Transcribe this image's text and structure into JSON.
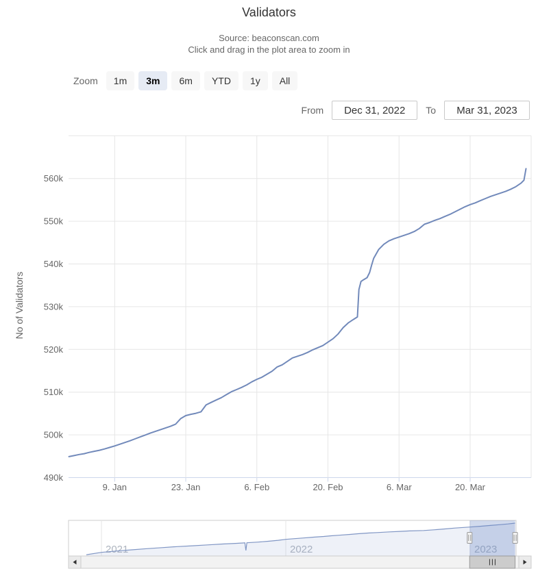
{
  "header": {
    "title": "Validators",
    "subtitle1": "Source: beaconscan.com",
    "subtitle2": "Click and drag in the plot area to zoom in"
  },
  "range_selector": {
    "zoom_label": "Zoom",
    "buttons": [
      {
        "label": "1m",
        "selected": false
      },
      {
        "label": "3m",
        "selected": true
      },
      {
        "label": "6m",
        "selected": false
      },
      {
        "label": "YTD",
        "selected": false
      },
      {
        "label": "1y",
        "selected": false
      },
      {
        "label": "All",
        "selected": false
      }
    ],
    "from_label": "From",
    "from_value": "Dec 31, 2022",
    "to_label": "To",
    "to_value": "Mar 31, 2023"
  },
  "chart_data": {
    "type": "line",
    "title": "Validators",
    "ylabel": "No of Validators",
    "xlabel": "",
    "x_unit": "days since Dec 31, 2022",
    "x_range": [
      "Dec 31, 2022",
      "Mar 31, 2023"
    ],
    "ylim": [
      487,
      571
    ],
    "grid": true,
    "legend": "none",
    "x_ticks": [
      {
        "day": 9,
        "label": "9. Jan"
      },
      {
        "day": 23,
        "label": "23. Jan"
      },
      {
        "day": 37,
        "label": "6. Feb"
      },
      {
        "day": 51,
        "label": "20. Feb"
      },
      {
        "day": 65,
        "label": "6. Mar"
      },
      {
        "day": 79,
        "label": "20. Mar"
      }
    ],
    "y_ticks": [
      {
        "v": 490,
        "label": "490k"
      },
      {
        "v": 500,
        "label": "500k"
      },
      {
        "v": 510,
        "label": "510k"
      },
      {
        "v": 520,
        "label": "520k"
      },
      {
        "v": 530,
        "label": "530k"
      },
      {
        "v": 540,
        "label": "540k"
      },
      {
        "v": 550,
        "label": "550k"
      },
      {
        "v": 560,
        "label": "560k"
      },
      {
        "v": 570,
        "label": ""
      }
    ],
    "series": [
      {
        "name": "No of Validators (thousands)",
        "points": [
          [
            0,
            494.9
          ],
          [
            1,
            495.15
          ],
          [
            2,
            495.4
          ],
          [
            3,
            495.6
          ],
          [
            4,
            495.9
          ],
          [
            5,
            496.15
          ],
          [
            6,
            496.4
          ],
          [
            7,
            496.7
          ],
          [
            8,
            497.05
          ],
          [
            9,
            497.4
          ],
          [
            10,
            497.8
          ],
          [
            11,
            498.2
          ],
          [
            12,
            498.6
          ],
          [
            13,
            499.05
          ],
          [
            14,
            499.5
          ],
          [
            15,
            499.95
          ],
          [
            16,
            500.4
          ],
          [
            17,
            500.8
          ],
          [
            18,
            501.2
          ],
          [
            19,
            501.6
          ],
          [
            20,
            502.0
          ],
          [
            21,
            502.5
          ],
          [
            22,
            503.8
          ],
          [
            23,
            504.5
          ],
          [
            24,
            504.8
          ],
          [
            25,
            505.05
          ],
          [
            26,
            505.4
          ],
          [
            27,
            507.0
          ],
          [
            28,
            507.6
          ],
          [
            29,
            508.15
          ],
          [
            30,
            508.7
          ],
          [
            31,
            509.4
          ],
          [
            32,
            510.1
          ],
          [
            33,
            510.6
          ],
          [
            34,
            511.1
          ],
          [
            35,
            511.7
          ],
          [
            36,
            512.4
          ],
          [
            37,
            513.0
          ],
          [
            38,
            513.5
          ],
          [
            39,
            514.2
          ],
          [
            40,
            514.9
          ],
          [
            41,
            515.9
          ],
          [
            42,
            516.4
          ],
          [
            43,
            517.2
          ],
          [
            44,
            518.0
          ],
          [
            45,
            518.4
          ],
          [
            46,
            518.8
          ],
          [
            47,
            519.3
          ],
          [
            48,
            519.9
          ],
          [
            49,
            520.4
          ],
          [
            50,
            520.9
          ],
          [
            51,
            521.7
          ],
          [
            52,
            522.5
          ],
          [
            53,
            523.6
          ],
          [
            54,
            525.1
          ],
          [
            55,
            526.2
          ],
          [
            56,
            527.0
          ],
          [
            56.8,
            527.6
          ],
          [
            57.1,
            534.0
          ],
          [
            57.5,
            535.9
          ],
          [
            58,
            536.3
          ],
          [
            58.7,
            536.8
          ],
          [
            59.2,
            538.0
          ],
          [
            59.6,
            539.7
          ],
          [
            60,
            541.3
          ],
          [
            61,
            543.4
          ],
          [
            62,
            544.6
          ],
          [
            63,
            545.4
          ],
          [
            64,
            545.9
          ],
          [
            65,
            546.3
          ],
          [
            66,
            546.7
          ],
          [
            67,
            547.1
          ],
          [
            68,
            547.6
          ],
          [
            69,
            548.3
          ],
          [
            70,
            549.3
          ],
          [
            71,
            549.7
          ],
          [
            72,
            550.2
          ],
          [
            73,
            550.6
          ],
          [
            74,
            551.1
          ],
          [
            75,
            551.6
          ],
          [
            76,
            552.2
          ],
          [
            77,
            552.8
          ],
          [
            78,
            553.4
          ],
          [
            79,
            553.9
          ],
          [
            80,
            554.3
          ],
          [
            81,
            554.8
          ],
          [
            82,
            555.3
          ],
          [
            83,
            555.8
          ],
          [
            84,
            556.2
          ],
          [
            85,
            556.6
          ],
          [
            86,
            557.0
          ],
          [
            87,
            557.5
          ],
          [
            88,
            558.1
          ],
          [
            89,
            558.9
          ],
          [
            89.6,
            559.6
          ],
          [
            90,
            562.3
          ]
        ]
      }
    ],
    "navigator": {
      "x_unit": "days since Jan 1, 2023",
      "year_labels": [
        {
          "label": "2021",
          "day": -730
        },
        {
          "label": "2022",
          "day": -365
        },
        {
          "label": "2023",
          "day": 0
        }
      ],
      "selection_days": [
        -1,
        89
      ],
      "points": [
        [
          -760,
          21
        ],
        [
          -730,
          62
        ],
        [
          -700,
          85
        ],
        [
          -670,
          105
        ],
        [
          -640,
          125
        ],
        [
          -610,
          143
        ],
        [
          -580,
          160
        ],
        [
          -550,
          175
        ],
        [
          -520,
          190
        ],
        [
          -490,
          205
        ],
        [
          -465,
          216
        ],
        [
          -450,
          223
        ],
        [
          -446,
          225
        ],
        [
          -444,
          95
        ],
        [
          -442,
          226
        ],
        [
          -420,
          238
        ],
        [
          -400,
          252
        ],
        [
          -380,
          268
        ],
        [
          -365,
          285
        ],
        [
          -350,
          295
        ],
        [
          -330,
          308
        ],
        [
          -310,
          322
        ],
        [
          -290,
          334
        ],
        [
          -275,
          345
        ],
        [
          -260,
          355
        ],
        [
          -240,
          368
        ],
        [
          -220,
          382
        ],
        [
          -200,
          393
        ],
        [
          -184,
          400
        ],
        [
          -160,
          412
        ],
        [
          -140,
          420
        ],
        [
          -120,
          428
        ],
        [
          -92,
          435
        ],
        [
          -70,
          448
        ],
        [
          -50,
          462
        ],
        [
          -30,
          478
        ],
        [
          0,
          495
        ],
        [
          20,
          508
        ],
        [
          40,
          522
        ],
        [
          60,
          536
        ],
        [
          75,
          548
        ],
        [
          89,
          562
        ]
      ]
    },
    "colors": {
      "line": "#7189ba",
      "grid": "#e6e6e6",
      "axis_line": "#ccd6eb",
      "label": "#666666",
      "nav_line": "#8096c4",
      "nav_fill": "rgba(124,150,200,0.13)",
      "nav_mask": "rgba(102,133,194,0.3)",
      "nav_outline": "#cccccc",
      "handle_fill": "#f2f2f2",
      "handle_stroke": "#999999",
      "scroll_track": "#f2f2f2",
      "scroll_border": "#cccccc",
      "scroll_thumb": "#cccccc",
      "scroll_thumb_border": "#999999",
      "scroll_arrow": "#333333"
    }
  }
}
